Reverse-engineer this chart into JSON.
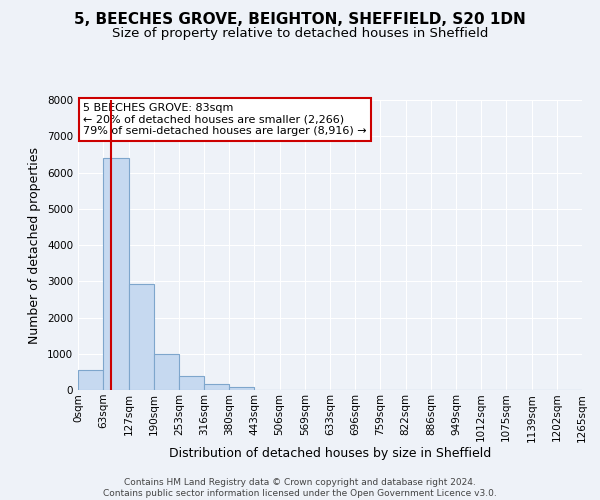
{
  "title": "5, BEECHES GROVE, BEIGHTON, SHEFFIELD, S20 1DN",
  "subtitle": "Size of property relative to detached houses in Sheffield",
  "xlabel": "Distribution of detached houses by size in Sheffield",
  "ylabel": "Number of detached properties",
  "bar_values": [
    550,
    6400,
    2920,
    980,
    380,
    170,
    90,
    0,
    0,
    0,
    0,
    0,
    0,
    0,
    0,
    0,
    0,
    0,
    0,
    0
  ],
  "bin_edges": [
    0,
    63,
    127,
    190,
    253,
    316,
    380,
    443,
    506,
    569,
    633,
    696,
    759,
    822,
    886,
    949,
    1012,
    1075,
    1139,
    1202,
    1265
  ],
  "tick_labels": [
    "0sqm",
    "63sqm",
    "127sqm",
    "190sqm",
    "253sqm",
    "316sqm",
    "380sqm",
    "443sqm",
    "506sqm",
    "569sqm",
    "633sqm",
    "696sqm",
    "759sqm",
    "822sqm",
    "886sqm",
    "949sqm",
    "1012sqm",
    "1075sqm",
    "1139sqm",
    "1202sqm",
    "1265sqm"
  ],
  "bar_color": "#c6d9f0",
  "bar_edge_color": "#7ea6cc",
  "property_size": 83,
  "vline_color": "#cc0000",
  "annotation_text": "5 BEECHES GROVE: 83sqm\n← 20% of detached houses are smaller (2,266)\n79% of semi-detached houses are larger (8,916) →",
  "annotation_box_color": "#ffffff",
  "annotation_box_edge_color": "#cc0000",
  "ylim": [
    0,
    8000
  ],
  "yticks": [
    0,
    1000,
    2000,
    3000,
    4000,
    5000,
    6000,
    7000,
    8000
  ],
  "footer_text": "Contains HM Land Registry data © Crown copyright and database right 2024.\nContains public sector information licensed under the Open Government Licence v3.0.",
  "background_color": "#eef2f8",
  "grid_color": "#ffffff",
  "title_fontsize": 11,
  "subtitle_fontsize": 9.5,
  "axis_label_fontsize": 9,
  "tick_fontsize": 7.5,
  "annotation_fontsize": 8,
  "footer_fontsize": 6.5
}
